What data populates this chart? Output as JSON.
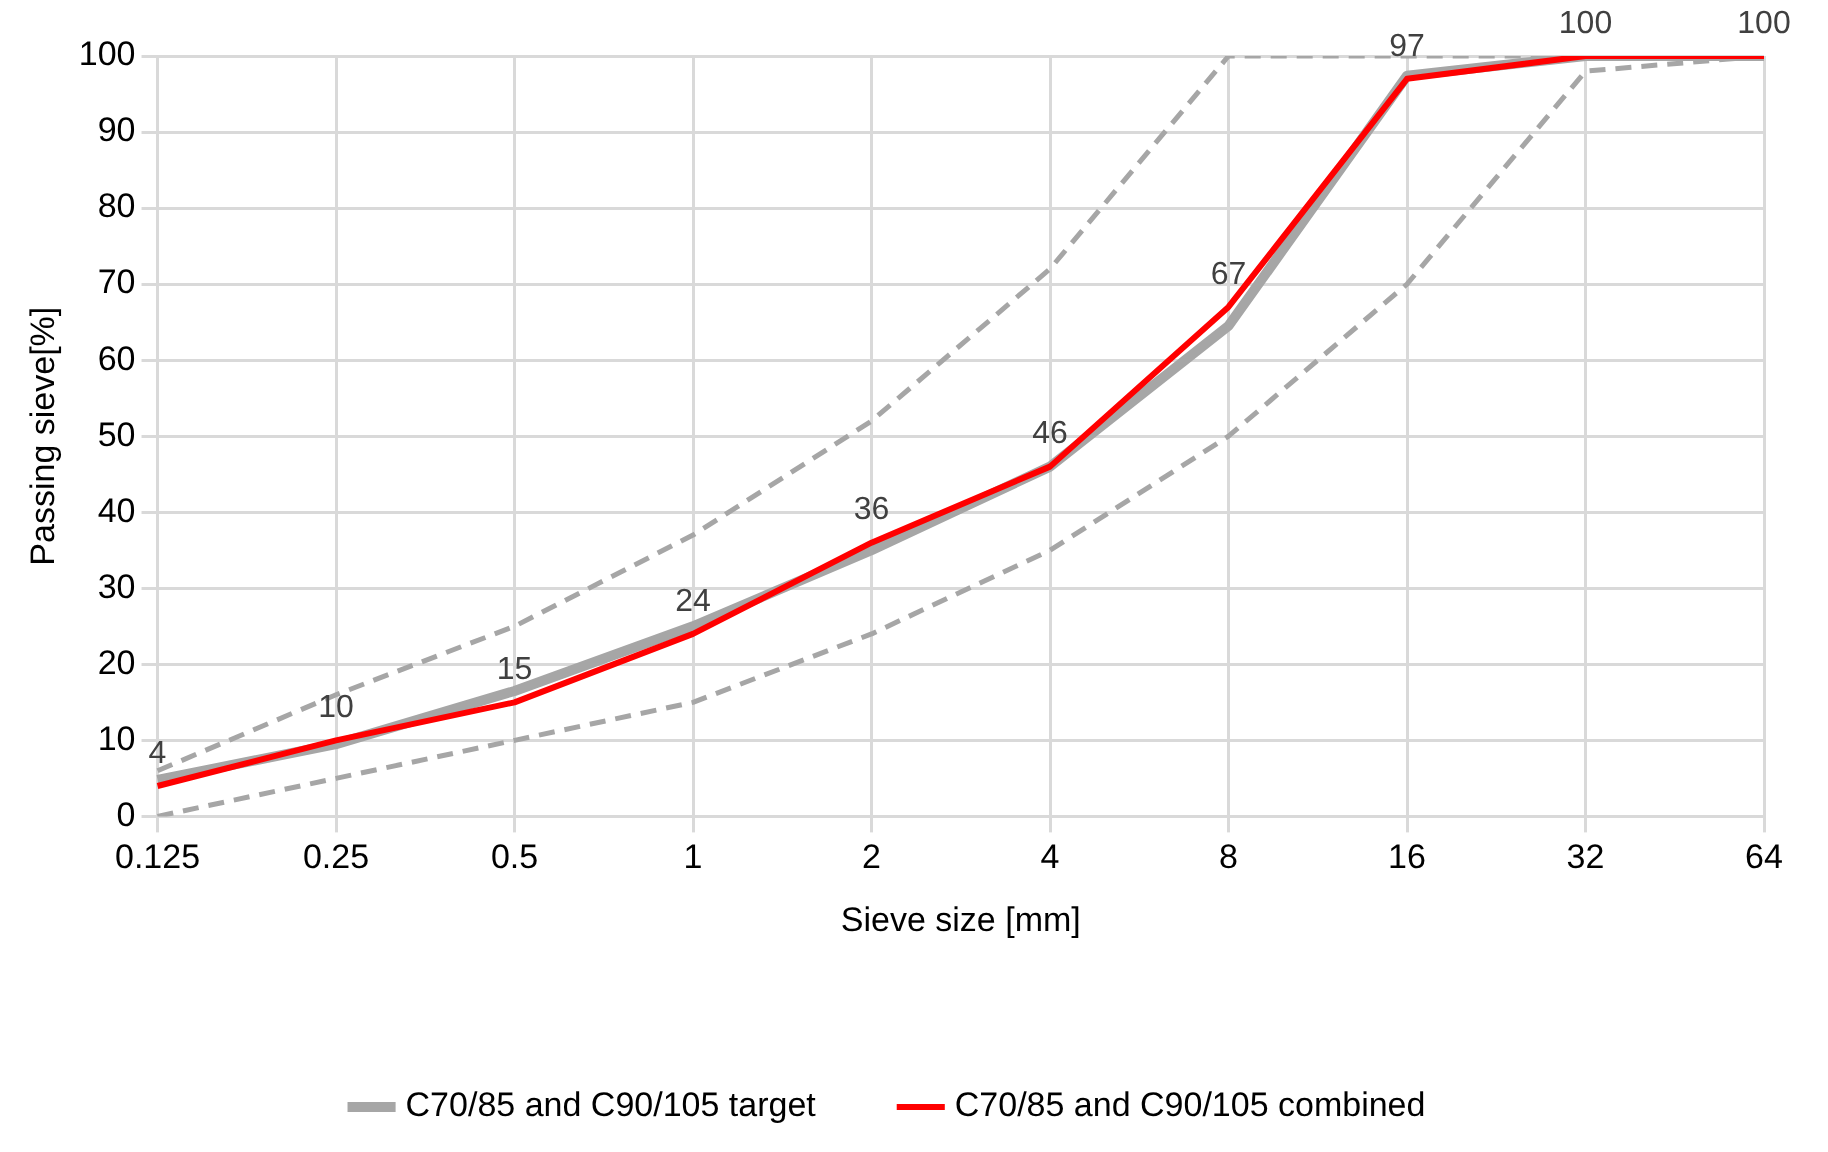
{
  "chart_data": {
    "type": "line",
    "xlabel": "Sieve size [mm]",
    "ylabel": "Passing sieve[%]",
    "categories": [
      "0.125",
      "0.25",
      "0.5",
      "1",
      "2",
      "4",
      "8",
      "16",
      "32",
      "64"
    ],
    "ylim": [
      0,
      100
    ],
    "yticks": [
      0,
      10,
      20,
      30,
      40,
      50,
      60,
      70,
      80,
      90,
      100
    ],
    "grid": true,
    "legend": "bottom",
    "marker": "none",
    "series": [
      {
        "color": "#a6a6a6",
        "line_style": "dashed",
        "values": [
          6,
          16,
          25,
          37,
          52,
          72,
          100,
          100,
          100,
          100
        ]
      },
      {
        "color": "#a6a6a6",
        "line_style": "dashed",
        "values": [
          0,
          5,
          10,
          15,
          24,
          35,
          50,
          70,
          98,
          100
        ]
      },
      {
        "name": "C70/85 and C90/105 target",
        "color": "#a6a6a6",
        "values": [
          4.8,
          9.5,
          16.5,
          25,
          35,
          46,
          64.5,
          97.4,
          100,
          100
        ]
      },
      {
        "name": "C70/85 and C90/105 combined",
        "color": "#ff0000",
        "values": [
          4,
          10,
          15,
          24,
          36,
          46,
          67,
          97,
          100,
          100
        ],
        "value_labels": [
          "4",
          "10",
          "15",
          "24",
          "36",
          "46",
          "67",
          "97",
          "100",
          "100"
        ]
      }
    ]
  }
}
